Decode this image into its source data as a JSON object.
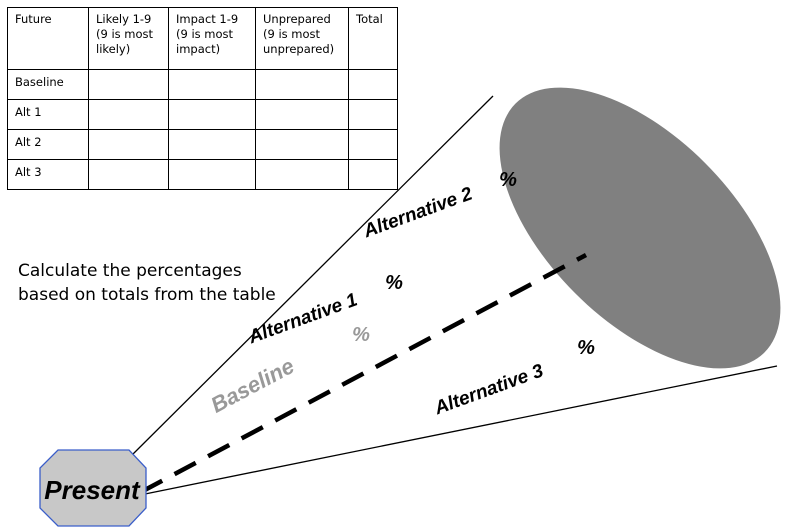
{
  "table": {
    "headers": [
      "Future",
      "Likely 1-9\n(9 is most\nlikely)",
      "Impact  1-9\n(9 is most\nimpact)",
      "Unprepared\n(9 is most\nunprepared)",
      "Total"
    ],
    "rows": [
      [
        "Baseline",
        "",
        "",
        "",
        ""
      ],
      [
        "Alt 1",
        "",
        "",
        "",
        ""
      ],
      [
        "Alt 2",
        "",
        "",
        "",
        ""
      ],
      [
        "Alt 3",
        "",
        "",
        "",
        ""
      ]
    ]
  },
  "instruction": "Calculate the percentages\nbased on totals from the table",
  "cone": {
    "present_label": "Present",
    "alternative_2": "Alternative 2",
    "alternative_1": "Alternative 1",
    "baseline": "Baseline",
    "alternative_3": "Alternative 3",
    "percent_symbol": "%"
  },
  "colors": {
    "cone_end": "#808080",
    "octagon_fill": "#c8c8c8",
    "octagon_stroke": "#3a5ec9",
    "baseline_label": "#999999"
  }
}
